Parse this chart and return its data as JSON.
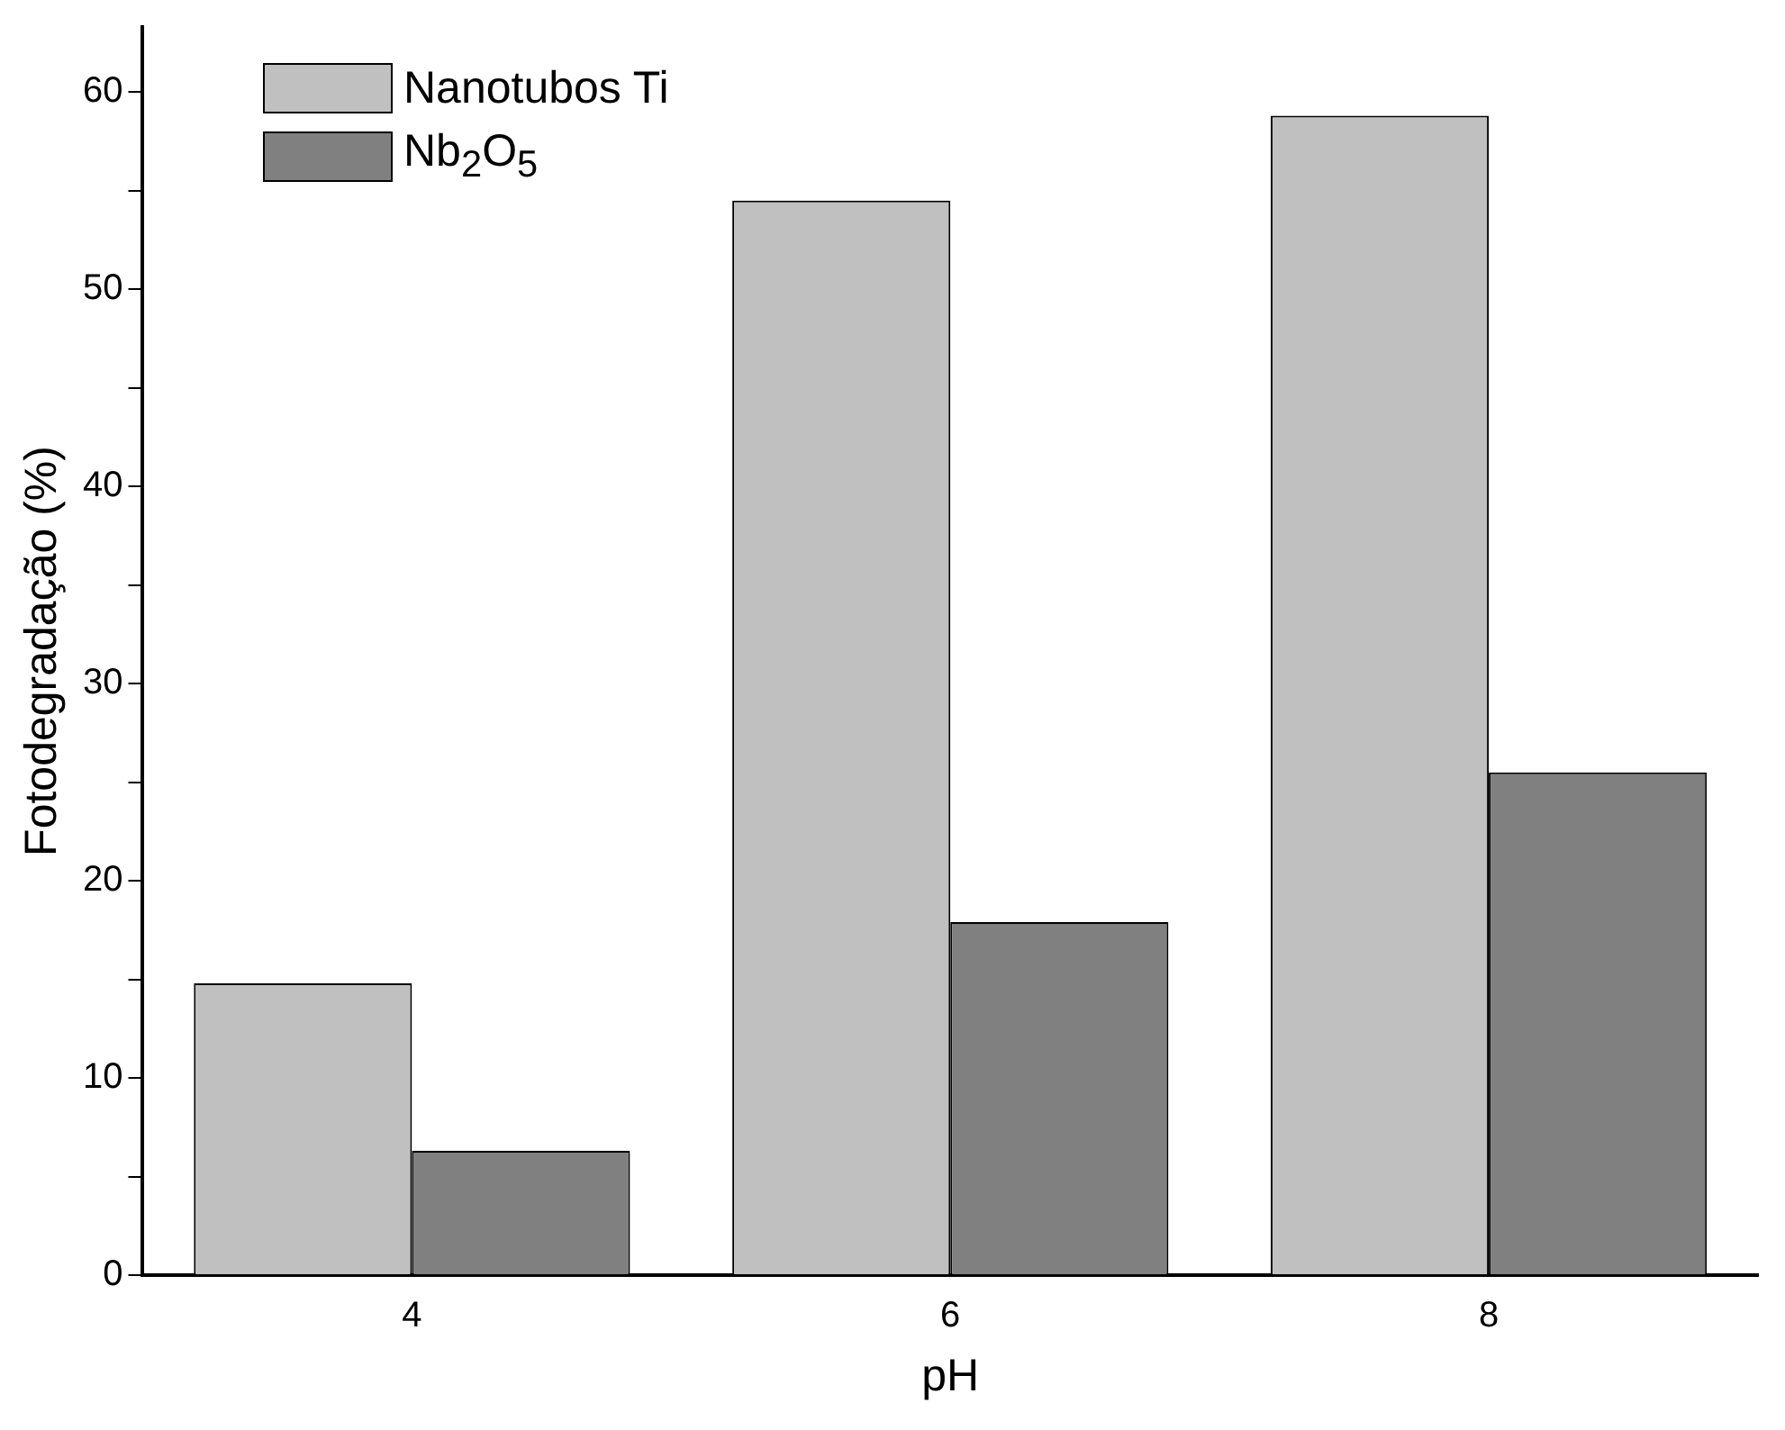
{
  "chart_data": {
    "type": "bar",
    "xlabel": "pH",
    "ylabel": "Fotodegradação (%)",
    "categories": [
      "4",
      "6",
      "8"
    ],
    "series": [
      {
        "name": "Nanotubos Ti",
        "color": "#c0c0c0",
        "values": [
          14.8,
          54.5,
          58.8
        ]
      },
      {
        "name": "Nb$_{2}$O$_{5}$",
        "color": "#808080",
        "values": [
          6.3,
          17.9,
          25.5
        ]
      }
    ],
    "ylim": [
      0,
      63.3
    ],
    "yticks": [
      0,
      {
        "value": 5,
        "label": null
      },
      10,
      {
        "value": 15,
        "label": null
      },
      20,
      {
        "value": 25,
        "label": null
      },
      30,
      {
        "value": 35,
        "label": null
      },
      40,
      {
        "value": 45,
        "label": null
      },
      50,
      {
        "value": 55,
        "label": null
      },
      60
    ],
    "grid": false,
    "legend": "top left"
  }
}
